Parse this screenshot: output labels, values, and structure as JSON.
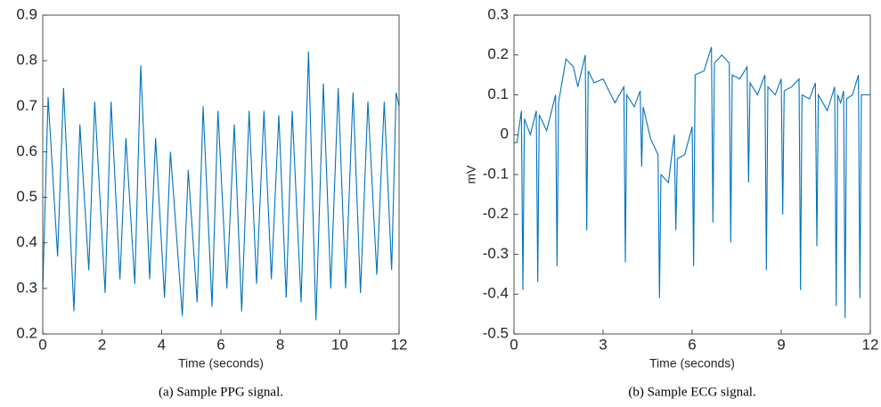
{
  "chart_data": [
    {
      "type": "line",
      "xlabel": "Time (seconds)",
      "caption": "(a) Sample PPG signal.",
      "x": [
        0,
        0.18,
        0.5,
        0.7,
        1.05,
        1.25,
        1.55,
        1.75,
        2.1,
        2.3,
        2.6,
        2.8,
        3.1,
        3.3,
        3.6,
        3.8,
        4.1,
        4.3,
        4.7,
        4.9,
        5.2,
        5.4,
        5.7,
        5.9,
        6.2,
        6.45,
        6.7,
        6.95,
        7.2,
        7.45,
        7.7,
        7.95,
        8.2,
        8.4,
        8.7,
        8.95,
        9.2,
        9.45,
        9.7,
        9.95,
        10.2,
        10.45,
        10.7,
        10.95,
        11.25,
        11.5,
        11.75,
        11.9,
        12
      ],
      "values": [
        0.3,
        0.72,
        0.37,
        0.74,
        0.25,
        0.66,
        0.34,
        0.71,
        0.29,
        0.71,
        0.32,
        0.63,
        0.31,
        0.79,
        0.32,
        0.63,
        0.28,
        0.6,
        0.24,
        0.56,
        0.27,
        0.7,
        0.26,
        0.69,
        0.3,
        0.66,
        0.25,
        0.69,
        0.31,
        0.69,
        0.32,
        0.68,
        0.28,
        0.69,
        0.27,
        0.82,
        0.23,
        0.75,
        0.3,
        0.74,
        0.3,
        0.73,
        0.29,
        0.71,
        0.33,
        0.71,
        0.34,
        0.73,
        0.7
      ],
      "color": "#0072bd",
      "xlim": [
        0,
        12
      ],
      "xticks": [
        0,
        2,
        4,
        6,
        8,
        10,
        12
      ],
      "ylim": [
        0.2,
        0.9
      ],
      "yticks": [
        0.2,
        0.3,
        0.4,
        0.5,
        0.6,
        0.7,
        0.8,
        0.9
      ]
    },
    {
      "type": "line",
      "xlabel": "Time (seconds)",
      "ylabel": "mV",
      "caption": "(b) Sample ECG signal.",
      "x": [
        0,
        0.1,
        0.25,
        0.3,
        0.35,
        0.55,
        0.75,
        0.8,
        0.85,
        1.1,
        1.4,
        1.45,
        1.5,
        1.75,
        2.0,
        2.15,
        2.4,
        2.45,
        2.5,
        2.7,
        3.0,
        3.4,
        3.7,
        3.75,
        3.8,
        4.05,
        4.25,
        4.3,
        4.35,
        4.6,
        4.85,
        4.9,
        4.95,
        5.2,
        5.4,
        5.45,
        5.5,
        5.75,
        6.0,
        6.05,
        6.1,
        6.4,
        6.65,
        6.7,
        6.75,
        7.0,
        7.25,
        7.3,
        7.35,
        7.6,
        7.85,
        7.9,
        7.95,
        8.2,
        8.45,
        8.5,
        8.55,
        8.8,
        9.0,
        9.05,
        9.1,
        9.35,
        9.6,
        9.65,
        9.7,
        9.95,
        10.15,
        10.2,
        10.25,
        10.55,
        10.8,
        10.85,
        10.9,
        11.0,
        11.1,
        11.15,
        11.2,
        11.4,
        11.6,
        11.65,
        11.7,
        11.85,
        12
      ],
      "values": [
        -0.02,
        -0.02,
        0.06,
        -0.39,
        0.04,
        0.0,
        0.06,
        -0.37,
        0.05,
        0.01,
        0.1,
        -0.33,
        0.08,
        0.19,
        0.17,
        0.12,
        0.2,
        -0.24,
        0.16,
        0.13,
        0.14,
        0.08,
        0.12,
        -0.32,
        0.1,
        0.07,
        0.11,
        -0.08,
        0.07,
        -0.01,
        -0.05,
        -0.41,
        -0.1,
        -0.12,
        0.0,
        -0.24,
        -0.06,
        -0.05,
        0.02,
        -0.33,
        0.15,
        0.16,
        0.22,
        -0.22,
        0.18,
        0.2,
        0.18,
        -0.27,
        0.15,
        0.14,
        0.17,
        -0.12,
        0.13,
        0.1,
        0.15,
        -0.34,
        0.12,
        0.1,
        0.14,
        -0.2,
        0.11,
        0.12,
        0.14,
        -0.39,
        0.1,
        0.09,
        0.13,
        -0.28,
        0.1,
        0.06,
        0.12,
        -0.43,
        0.1,
        0.08,
        0.11,
        -0.46,
        0.09,
        0.1,
        0.15,
        -0.41,
        0.1,
        0.1,
        0.1
      ],
      "color": "#0072bd",
      "xlim": [
        0,
        12
      ],
      "xticks": [
        0,
        3,
        6,
        9,
        12
      ],
      "ylim": [
        -0.5,
        0.3
      ],
      "yticks": [
        -0.5,
        -0.4,
        -0.3,
        -0.2,
        -0.1,
        0,
        0.1,
        0.2,
        0.3
      ]
    }
  ]
}
